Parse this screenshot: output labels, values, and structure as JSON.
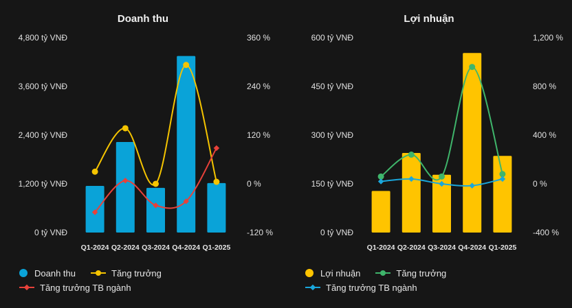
{
  "chart_data": [
    {
      "type": "bar",
      "title": "Doanh thu",
      "categories": [
        "Q1-2024",
        "Q2-2024",
        "Q3-2024",
        "Q4-2024",
        "Q1-2025"
      ],
      "series": [
        {
          "name": "Doanh thu",
          "type": "bar",
          "axis": "left",
          "color": "#0aa3d8",
          "values": [
            1150,
            2230,
            1100,
            4350,
            1220
          ]
        },
        {
          "name": "Tăng trưởng",
          "type": "line",
          "axis": "right",
          "marker": "circle",
          "color": "#f5c400",
          "values": [
            30,
            137,
            0,
            293,
            5
          ]
        },
        {
          "name": "Tăng trưởng TB ngành",
          "type": "line",
          "axis": "right",
          "marker": "diamond",
          "color": "#e8413a",
          "values": [
            -70,
            8,
            -53,
            -43,
            88
          ]
        }
      ],
      "left_axis": {
        "ticks": [
          "4,800 tỷ VNĐ",
          "3,600 tỷ VNĐ",
          "2,400 tỷ VNĐ",
          "1,200 tỷ VNĐ",
          "0 tỷ VNĐ"
        ],
        "ylim": [
          0,
          4800
        ]
      },
      "right_axis": {
        "ticks": [
          "360 %",
          "240 %",
          "120 %",
          "0 %",
          "-120 %"
        ],
        "ylim": [
          -120,
          360
        ]
      },
      "grid": false,
      "legend": "bottom"
    },
    {
      "type": "bar",
      "title": "Lợi nhuận",
      "categories": [
        "Q1-2024",
        "Q2-2024",
        "Q3-2024",
        "Q4-2024",
        "Q1-2025"
      ],
      "series": [
        {
          "name": "Lợi nhuận",
          "type": "bar",
          "axis": "left",
          "color": "#ffc400",
          "values": [
            128,
            245,
            178,
            553,
            236
          ]
        },
        {
          "name": "Tăng trưởng",
          "type": "line",
          "axis": "right",
          "marker": "circle",
          "color": "#3fb56b",
          "values": [
            60,
            240,
            60,
            960,
            80
          ]
        },
        {
          "name": "Tăng trưởng TB ngành",
          "type": "line",
          "axis": "right",
          "marker": "diamond",
          "color": "#1aa7dc",
          "values": [
            20,
            40,
            0,
            -15,
            40
          ]
        }
      ],
      "left_axis": {
        "ticks": [
          "600 tỷ VNĐ",
          "450 tỷ VNĐ",
          "300 tỷ VNĐ",
          "150 tỷ VNĐ",
          "0 tỷ VNĐ"
        ],
        "ylim": [
          0,
          600
        ]
      },
      "right_axis": {
        "ticks": [
          "1,200 %",
          "800 %",
          "400 %",
          "0 %",
          "-400 %"
        ],
        "ylim": [
          -400,
          1200
        ]
      },
      "grid": false,
      "legend": "bottom"
    }
  ]
}
